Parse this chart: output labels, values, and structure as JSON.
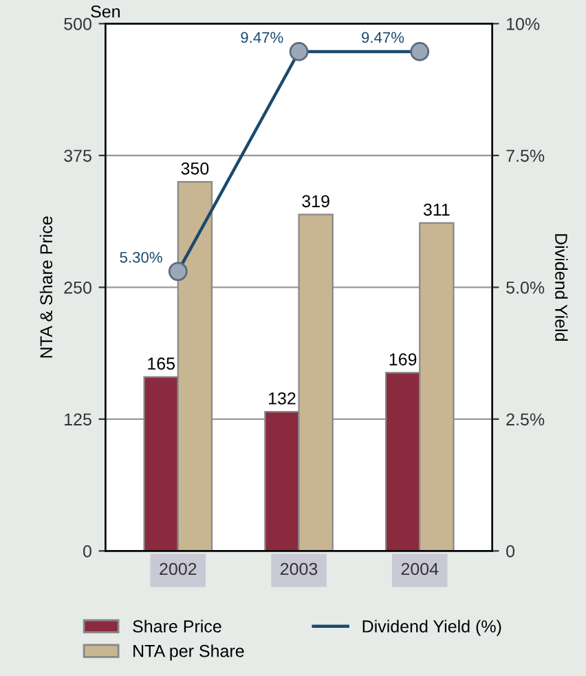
{
  "chart_data": {
    "type": "bar",
    "xlabel": null,
    "ylabel": "NTA & Share Price",
    "y2label": "Dividend Yield",
    "categories": [
      "2002",
      "2003",
      "2004"
    ],
    "series": [
      {
        "name": "Share Price",
        "color": "#8b2a3e",
        "values": [
          165,
          132,
          169
        ],
        "value_labels": [
          "165",
          "132",
          "169"
        ]
      },
      {
        "name": "NTA per Share",
        "color": "#c8b592",
        "values": [
          350,
          319,
          311
        ],
        "value_labels": [
          "350",
          "319",
          "311"
        ]
      },
      {
        "name": "Dividend Yield (%)",
        "type": "line",
        "axis": "y2",
        "color": "#1a4a6e",
        "marker": "circle",
        "values": [
          5.3,
          9.47,
          9.47
        ],
        "value_labels": [
          "5.30%",
          "9.47%",
          "9.47%"
        ]
      }
    ],
    "ylim": [
      0,
      500
    ],
    "yticks": [
      0,
      125,
      250,
      375,
      500
    ],
    "y2lim": [
      0,
      10
    ],
    "y2ticks": [
      0,
      {
        "value": 2.5,
        "label": "2.5%"
      },
      {
        "value": 5,
        "label": "5.0%"
      },
      {
        "value": 7.5,
        "label": "7.5%"
      },
      {
        "value": 10,
        "label": "10%"
      }
    ],
    "annotations": [
      "Sen"
    ],
    "grid": "y",
    "legend": "bottom"
  }
}
